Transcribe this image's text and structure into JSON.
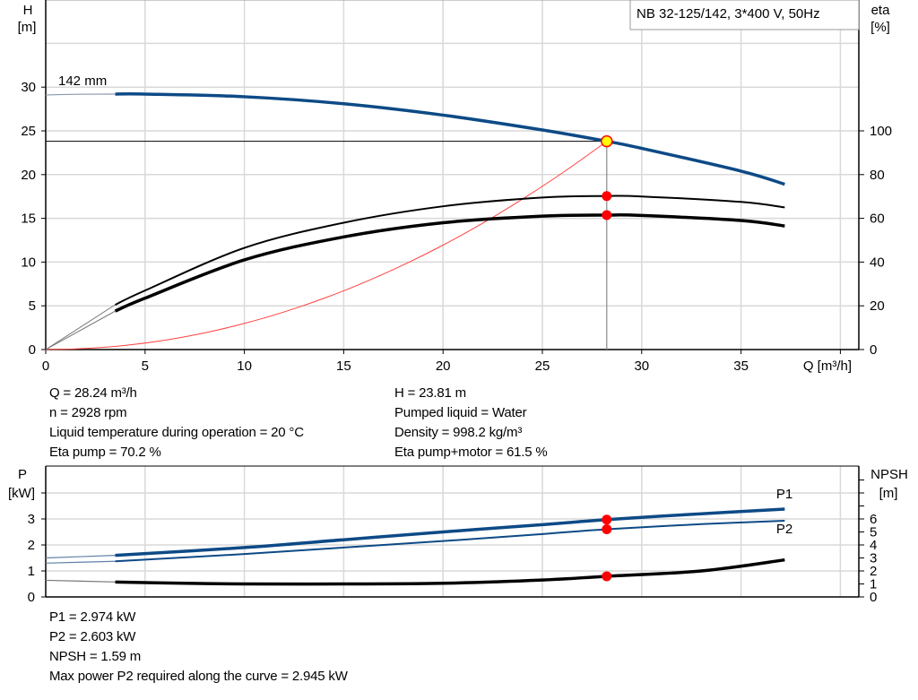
{
  "chart_data": [
    {
      "type": "line",
      "title": "NB 32-125/142, 3*400 V, 50Hz",
      "xlabel": "Q [m³/h]",
      "ylabel_left": [
        "H",
        "[m]"
      ],
      "ylabel_right": [
        "eta",
        "[%]"
      ],
      "xlim": [
        0,
        40
      ],
      "ylim_left": [
        0,
        35
      ],
      "ylim_right": [
        0,
        140
      ],
      "x_ticks": [
        "0",
        "5",
        "10",
        "15",
        "20",
        "25",
        "30",
        "35"
      ],
      "y_ticks_left": [
        "0",
        "5",
        "10",
        "15",
        "20",
        "25",
        "30"
      ],
      "y_ticks_right": [
        "0",
        "20",
        "40",
        "60",
        "80",
        "100"
      ],
      "grid": true,
      "curve_label": "142 mm",
      "series": [
        {
          "key": "H",
          "axis": "left",
          "color": "#0d4a86",
          "x": [
            3.5,
            5,
            10,
            15,
            20,
            25,
            28.24,
            30,
            35,
            37.2
          ],
          "y": [
            29.2,
            29.2,
            28.9,
            28.1,
            26.8,
            25.1,
            23.81,
            23.0,
            20.4,
            18.9
          ],
          "extrapolated": {
            "x": [
              0,
              1.5,
              3.5
            ],
            "y": [
              29.1,
              29.18,
              29.2
            ]
          }
        },
        {
          "key": "eta_pump",
          "axis": "right",
          "color": "#000000",
          "x": [
            3.5,
            5,
            10,
            15,
            20,
            25,
            28.24,
            30,
            35,
            37.2
          ],
          "y": [
            20.5,
            27,
            46.5,
            58,
            65.5,
            69.5,
            70.2,
            70,
            67.5,
            65
          ]
        },
        {
          "key": "eta_pump_motor",
          "axis": "right",
          "color": "#000000",
          "x": [
            3.5,
            5,
            10,
            15,
            20,
            25,
            28.24,
            30,
            35,
            37.2
          ],
          "y": [
            17.6,
            23.5,
            41,
            51.5,
            58,
            61,
            61.5,
            61.3,
            59,
            56.5
          ]
        },
        {
          "key": "system",
          "axis": "left",
          "color": "#ff4040",
          "formula": "H = 23.81*(Q/28.24)^2",
          "x_range": [
            0,
            28.24
          ]
        }
      ],
      "duty_point": {
        "Q": 28.24,
        "H": 23.81,
        "eta_pump": 70.2,
        "eta_pump_motor": 61.5
      }
    },
    {
      "type": "line",
      "ylabel_left": [
        "P",
        "[kW]"
      ],
      "ylabel_right": [
        "NPSH",
        "[m]"
      ],
      "xlim": [
        0,
        40
      ],
      "ylim_left": [
        0,
        5
      ],
      "ylim_right": [
        0,
        10
      ],
      "y_ticks_left": [
        "0",
        "1",
        "2",
        "3"
      ],
      "y_ticks_right": [
        "0",
        "1",
        "2",
        "3",
        "4",
        "5",
        "6"
      ],
      "grid": true,
      "series": [
        {
          "name": "P1",
          "axis": "left",
          "color": "#0d4a86",
          "x": [
            3.5,
            10,
            15,
            20,
            25,
            28.24,
            33,
            37.2
          ],
          "y": [
            1.6,
            1.9,
            2.2,
            2.5,
            2.78,
            2.974,
            3.2,
            3.38
          ],
          "extrapolated": {
            "x": [
              0,
              3.5
            ],
            "y": [
              1.5,
              1.6
            ]
          }
        },
        {
          "name": "P2",
          "axis": "left",
          "color": "#0d4a86",
          "x": [
            3.5,
            10,
            15,
            20,
            25,
            28.24,
            33,
            37.2
          ],
          "y": [
            1.37,
            1.65,
            1.9,
            2.15,
            2.42,
            2.603,
            2.8,
            2.93
          ],
          "extrapolated": {
            "x": [
              0,
              3.5
            ],
            "y": [
              1.3,
              1.37
            ]
          }
        },
        {
          "key": "NPSH",
          "axis": "right",
          "color": "#000000",
          "x": [
            3.5,
            7,
            10,
            15,
            20,
            25,
            28.24,
            33,
            37.2
          ],
          "y": [
            1.15,
            1.05,
            1.0,
            1.0,
            1.05,
            1.3,
            1.59,
            2.0,
            2.85
          ],
          "extrapolated": {
            "x": [
              0,
              3.5
            ],
            "y": [
              1.28,
              1.15
            ]
          }
        }
      ],
      "duty_point": {
        "Q": 28.24,
        "P1": 2.974,
        "P2": 2.603,
        "NPSH": 1.59
      }
    }
  ],
  "readout": {
    "q": "Q = 28.24 m³/h",
    "n": "n = 2928 rpm",
    "temp": "Liquid temperature during operation = 20 °C",
    "eta_pump": "Eta pump = 70.2 %",
    "h": "H = 23.81 m",
    "liquid": "Pumped liquid = Water",
    "density": "Density = 998.2 kg/m³",
    "eta_total": "Eta pump+motor = 61.5 %"
  },
  "power_readout": {
    "p1": "P1 = 2.974 kW",
    "p2": "P2 = 2.603 kW",
    "npsh": "NPSH = 1.59 m",
    "max_p2": "Max power P2 required along the curve = 2.945 kW"
  },
  "colors": {
    "curve_blue": "#0d4a86",
    "duty_red": "#ff0000",
    "duty_yellow": "#ffff00",
    "grid": "#d9d9d9"
  }
}
